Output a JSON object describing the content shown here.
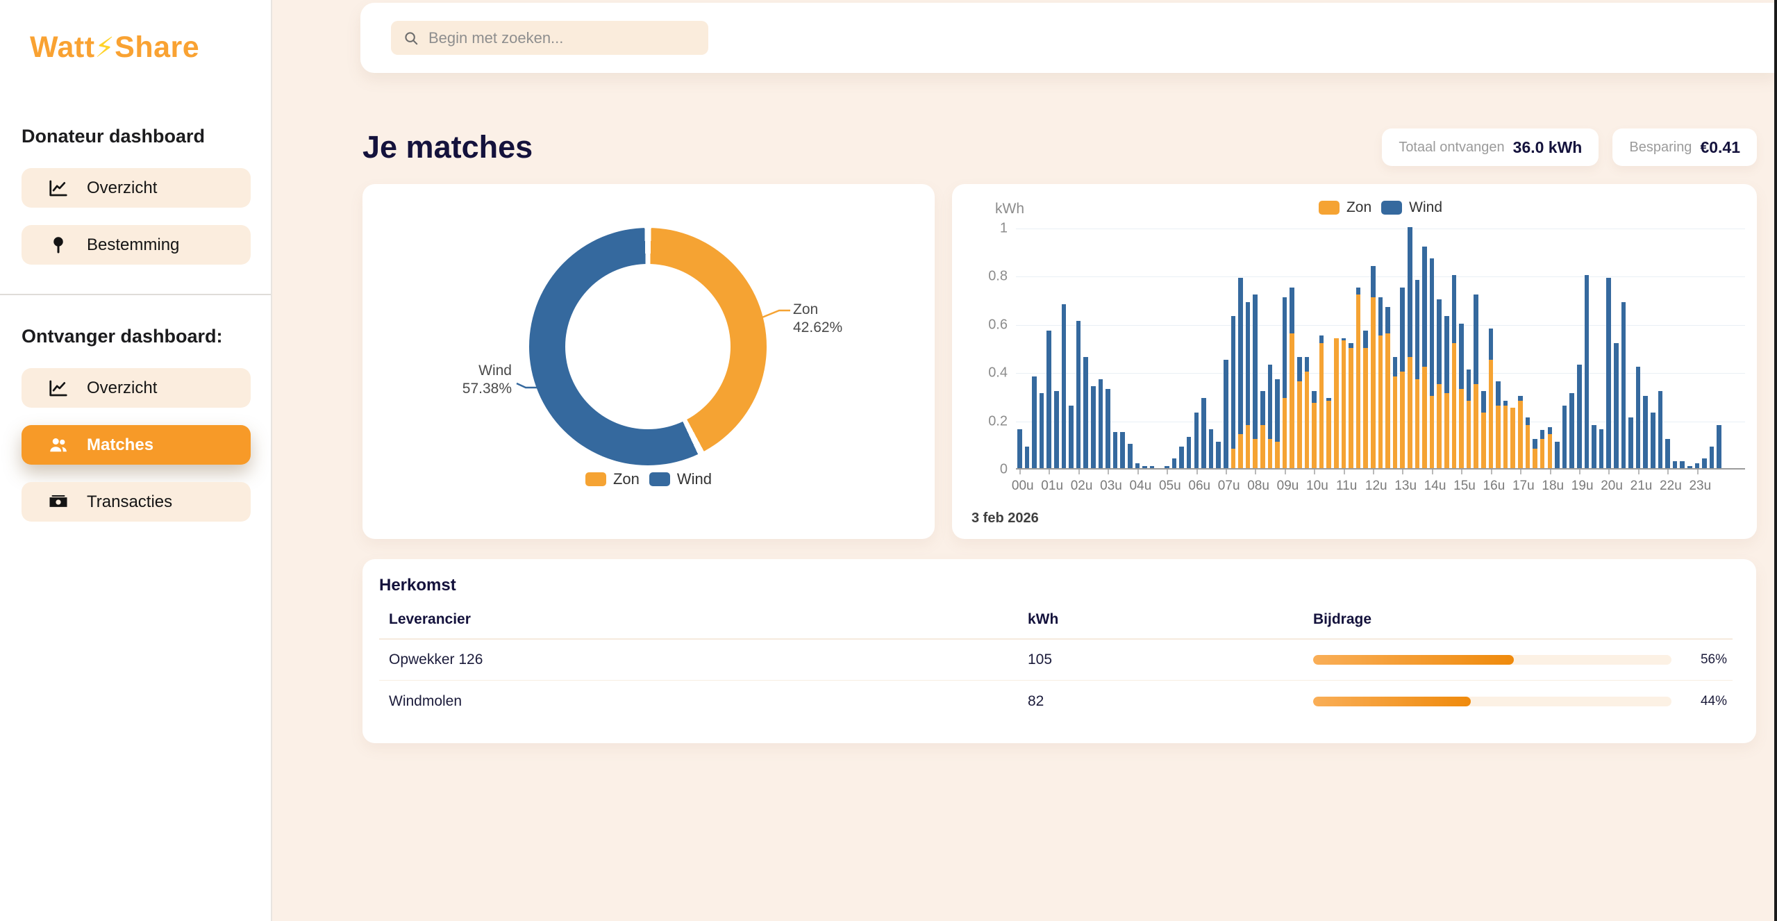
{
  "brand": {
    "prefix": "Watt",
    "bolt": "⚡",
    "suffix": "Share"
  },
  "sidebar": {
    "donor_heading": "Donateur dashboard",
    "donor_items": [
      {
        "label": "Overzicht",
        "icon": "chart-line"
      },
      {
        "label": "Bestemming",
        "icon": "map-pin"
      }
    ],
    "receiver_heading": "Ontvanger dashboard:",
    "receiver_items": [
      {
        "label": "Overzicht",
        "icon": "chart-line",
        "active": false
      },
      {
        "label": "Matches",
        "icon": "users",
        "active": true
      },
      {
        "label": "Transacties",
        "icon": "banknote",
        "active": false
      }
    ]
  },
  "topbar": {
    "search_placeholder": "Begin met zoeken..."
  },
  "page": {
    "title": "Je matches"
  },
  "stats": [
    {
      "label": "Totaal ontvangen",
      "value": "36.0 kWh"
    },
    {
      "label": "Besparing",
      "value": "€0.41"
    }
  ],
  "colors": {
    "accent_orange": "#F79A28",
    "zon": "#F5A333",
    "wind": "#35699E",
    "page_background": "#FBF0E7",
    "panel_cream": "#FAECDC",
    "heading_navy": "#14123C",
    "bijdrage_fill_start": "#F9AE57",
    "bijdrage_fill_end": "#EF8A0C"
  },
  "chart_data": [
    {
      "type": "pie",
      "subtype": "donut",
      "labels": [
        "Zon",
        "Wind"
      ],
      "values": [
        42.62,
        57.38
      ],
      "value_labels": [
        "42.62%",
        "57.38%"
      ],
      "unit": "%",
      "legend_position": "bottom"
    },
    {
      "type": "bar",
      "stacked": true,
      "ylabel": "kWh",
      "ylim": [
        0,
        1
      ],
      "yticks": [
        0,
        0.2,
        0.4,
        0.6,
        0.8,
        1
      ],
      "x_hours": [
        "00u",
        "01u",
        "02u",
        "03u",
        "04u",
        "05u",
        "06u",
        "07u",
        "08u",
        "09u",
        "10u",
        "11u",
        "12u",
        "13u",
        "14u",
        "15u",
        "16u",
        "17u",
        "18u",
        "19u",
        "20u",
        "21u",
        "22u",
        "23u"
      ],
      "bars_per_hour": 4,
      "legend_position": "top",
      "grid": true,
      "footnote": "3 feb 2026",
      "series": [
        {
          "name": "Zon",
          "values": [
            0,
            0,
            0,
            0,
            0,
            0,
            0,
            0,
            0,
            0,
            0,
            0,
            0,
            0,
            0,
            0,
            0,
            0,
            0,
            0,
            0,
            0,
            0,
            0,
            0,
            0,
            0,
            0,
            0,
            0.08,
            0.14,
            0.18,
            0.12,
            0.18,
            0.12,
            0.11,
            0.29,
            0.56,
            0.36,
            0.4,
            0.27,
            0.52,
            0.28,
            0.54,
            0.53,
            0.5,
            0.72,
            0.5,
            0.71,
            0.55,
            0.56,
            0.38,
            0.4,
            0.46,
            0.37,
            0.42,
            0.3,
            0.35,
            0.31,
            0.52,
            0.33,
            0.28,
            0.35,
            0.23,
            0.45,
            0.26,
            0.26,
            0.25,
            0.28,
            0.18,
            0.08,
            0.12,
            0.14,
            0,
            0,
            0,
            0,
            0,
            0,
            0,
            0,
            0,
            0,
            0,
            0,
            0,
            0,
            0,
            0,
            0,
            0,
            0,
            0,
            0,
            0,
            0
          ]
        },
        {
          "name": "Wind",
          "values": [
            0.16,
            0.09,
            0.38,
            0.31,
            0.57,
            0.32,
            0.68,
            0.26,
            0.61,
            0.46,
            0.34,
            0.37,
            0.33,
            0.15,
            0.15,
            0.1,
            0.02,
            0.01,
            0.01,
            0,
            0.01,
            0.04,
            0.09,
            0.13,
            0.23,
            0.29,
            0.16,
            0.11,
            0.45,
            0.55,
            0.65,
            0.51,
            0.6,
            0.14,
            0.31,
            0.26,
            0.42,
            0.19,
            0.1,
            0.06,
            0.05,
            0.03,
            0.01,
            0,
            0.01,
            0.02,
            0.03,
            0.07,
            0.13,
            0.16,
            0.11,
            0.08,
            0.35,
            0.54,
            0.41,
            0.5,
            0.57,
            0.35,
            0.32,
            0.28,
            0.27,
            0.13,
            0.37,
            0.09,
            0.13,
            0.1,
            0.02,
            0,
            0.02,
            0.03,
            0.04,
            0.04,
            0.03,
            0.11,
            0.26,
            0.31,
            0.43,
            0.8,
            0.18,
            0.16,
            0.79,
            0.52,
            0.69,
            0.21,
            0.42,
            0.3,
            0.23,
            0.32,
            0.12,
            0.03,
            0.03,
            0.01,
            0.02,
            0.04,
            0.09,
            0.18
          ]
        }
      ]
    },
    {
      "type": "table",
      "title": "Herkomst",
      "columns": [
        "Leverancier",
        "kWh",
        "Bijdrage"
      ],
      "rows": [
        {
          "leverancier": "Opwekker 126",
          "kwh": "105",
          "bijdrage_pct": 56,
          "bijdrage_label": "56%"
        },
        {
          "leverancier": "Windmolen",
          "kwh": "82",
          "bijdrage_pct": 44,
          "bijdrage_label": "44%"
        }
      ]
    }
  ]
}
